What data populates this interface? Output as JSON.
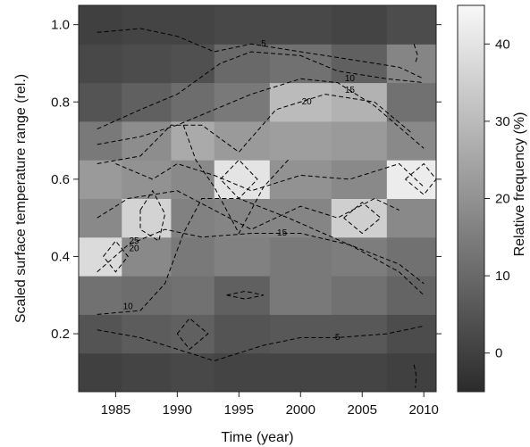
{
  "chart_data": {
    "type": "heatmap",
    "title": "",
    "xlabel": "Time (year)",
    "ylabel": "Scaled surface temperature range (rel.)",
    "colorbar_label": "Relative frequency (%)",
    "xlim": [
      1982,
      2011
    ],
    "ylim": [
      0.05,
      1.05
    ],
    "x_ticks": [
      1985,
      1990,
      1995,
      2000,
      2005,
      2010
    ],
    "y_ticks": [
      0.2,
      0.4,
      0.6,
      0.8,
      1.0
    ],
    "colorbar_ticks": [
      0,
      10,
      20,
      30,
      40
    ],
    "colorbar_range": [
      -5,
      45
    ],
    "colormap": {
      "low": "#2b2b2b",
      "high": "#f8f8f8"
    },
    "grid": false,
    "x_edges": [
      1982,
      1985.5,
      1989.5,
      1993,
      1997.5,
      2002.5,
      2007,
      2011
    ],
    "y_edges": [
      0.05,
      0.15,
      0.25,
      0.35,
      0.45,
      0.55,
      0.65,
      0.75,
      0.85,
      0.95,
      1.05
    ],
    "values": [
      [
        0,
        1,
        2,
        1,
        1,
        1,
        0
      ],
      [
        5,
        7,
        8,
        5,
        6,
        6,
        3
      ],
      [
        12,
        11,
        12,
        8,
        14,
        12,
        9
      ],
      [
        38,
        18,
        14,
        16,
        14,
        15,
        12
      ],
      [
        18,
        36,
        16,
        17,
        17,
        35,
        18
      ],
      [
        22,
        20,
        18,
        40,
        20,
        18,
        42
      ],
      [
        14,
        19,
        26,
        22,
        23,
        22,
        18
      ],
      [
        5,
        8,
        11,
        14,
        30,
        28,
        12
      ],
      [
        2,
        3,
        4,
        10,
        12,
        8,
        17
      ],
      [
        0,
        1,
        1,
        2,
        2,
        1,
        3
      ]
    ],
    "contours": [
      {
        "level": "5",
        "points": [
          [
            1983.5,
            0.98
          ],
          [
            1987,
            0.99
          ],
          [
            1990,
            0.97
          ],
          [
            1993,
            0.93
          ],
          [
            1996,
            0.95
          ],
          [
            2000,
            0.93
          ],
          [
            2004,
            0.91
          ],
          [
            2008,
            0.89
          ],
          [
            2010,
            0.86
          ]
        ]
      },
      {
        "level": "5",
        "points": [
          [
            1983.5,
            0.21
          ],
          [
            1987,
            0.19
          ],
          [
            1990,
            0.16
          ],
          [
            1993,
            0.13
          ],
          [
            1997,
            0.17
          ],
          [
            2000,
            0.19
          ],
          [
            2003,
            0.19
          ],
          [
            2007,
            0.2
          ],
          [
            2010,
            0.22
          ]
        ]
      },
      {
        "level": "10",
        "points": [
          [
            1983.5,
            0.73
          ],
          [
            1987,
            0.78
          ],
          [
            1990,
            0.82
          ],
          [
            1993.5,
            0.9
          ],
          [
            1996,
            0.93
          ],
          [
            2000,
            0.92
          ],
          [
            2003,
            0.88
          ],
          [
            2007,
            0.86
          ],
          [
            2010,
            0.85
          ]
        ]
      },
      {
        "level": "10",
        "points": [
          [
            1983.5,
            0.25
          ],
          [
            1987,
            0.26
          ],
          [
            1989,
            0.33
          ],
          [
            1990.5,
            0.46
          ],
          [
            1992,
            0.55
          ],
          [
            1995,
            0.55
          ],
          [
            1999,
            0.5
          ],
          [
            2004,
            0.43
          ],
          [
            2008,
            0.36
          ],
          [
            2010,
            0.3
          ]
        ]
      },
      {
        "level": "15",
        "points": [
          [
            1983.5,
            0.69
          ],
          [
            1987,
            0.71
          ],
          [
            1990,
            0.74
          ],
          [
            1993,
            0.78
          ],
          [
            1996,
            0.82
          ],
          [
            2000,
            0.86
          ],
          [
            2003,
            0.85
          ],
          [
            2006,
            0.79
          ],
          [
            2010,
            0.68
          ]
        ]
      },
      {
        "level": "15",
        "points": [
          [
            1983.5,
            0.36
          ],
          [
            1986,
            0.43
          ],
          [
            1989,
            0.47
          ],
          [
            1992,
            0.45
          ],
          [
            1996,
            0.46
          ],
          [
            2000,
            0.46
          ],
          [
            2004,
            0.43
          ],
          [
            2008,
            0.38
          ],
          [
            2010,
            0.33
          ]
        ]
      },
      {
        "level": "20",
        "points": [
          [
            1983.5,
            0.64
          ],
          [
            1987,
            0.66
          ],
          [
            1989.5,
            0.74
          ],
          [
            1992,
            0.74
          ],
          [
            1995,
            0.67
          ],
          [
            1998,
            0.78
          ],
          [
            2002,
            0.82
          ],
          [
            2006,
            0.8
          ],
          [
            2009,
            0.72
          ]
        ]
      },
      {
        "level": "20",
        "points": [
          [
            1983.5,
            0.5
          ],
          [
            1986,
            0.55
          ],
          [
            1990,
            0.57
          ],
          [
            1993,
            0.52
          ],
          [
            1996,
            0.47
          ],
          [
            2000,
            0.53
          ],
          [
            2003,
            0.5
          ],
          [
            2006,
            0.55
          ],
          [
            2008,
            0.52
          ]
        ]
      },
      {
        "level": "",
        "points": [
          [
            1985,
            0.64
          ],
          [
            1988,
            0.6
          ],
          [
            1990,
            0.64
          ],
          [
            1993,
            0.61
          ],
          [
            1996,
            0.57
          ],
          [
            2000,
            0.61
          ],
          [
            2004,
            0.6
          ],
          [
            2008,
            0.64
          ],
          [
            2010,
            0.58
          ]
        ]
      },
      {
        "level": "",
        "points": [
          [
            1990.5,
            0.74
          ],
          [
            1991.5,
            0.65
          ],
          [
            1993,
            0.58
          ],
          [
            1994,
            0.52
          ],
          [
            1995,
            0.46
          ],
          [
            1997,
            0.58
          ],
          [
            1999,
            0.65
          ]
        ]
      },
      {
        "level": "",
        "points": [
          [
            1987,
            0.52
          ],
          [
            1988,
            0.57
          ],
          [
            1989,
            0.51
          ],
          [
            1988.5,
            0.44
          ],
          [
            1987,
            0.47
          ],
          [
            1987,
            0.52
          ]
        ]
      },
      {
        "level": "",
        "points": [
          [
            1993.5,
            0.6
          ],
          [
            1995,
            0.65
          ],
          [
            1996.5,
            0.6
          ],
          [
            1995,
            0.55
          ],
          [
            1993.5,
            0.6
          ]
        ]
      },
      {
        "level": "",
        "points": [
          [
            2003.5,
            0.5
          ],
          [
            2005,
            0.54
          ],
          [
            2006.5,
            0.5
          ],
          [
            2005,
            0.46
          ],
          [
            2003.5,
            0.5
          ]
        ]
      },
      {
        "level": "",
        "points": [
          [
            2008.5,
            0.6
          ],
          [
            2010,
            0.64
          ],
          [
            2011,
            0.6
          ],
          [
            2010,
            0.56
          ],
          [
            2008.5,
            0.6
          ]
        ]
      },
      {
        "level": "",
        "points": [
          [
            1984,
            0.4
          ],
          [
            1985,
            0.44
          ],
          [
            1986,
            0.4
          ],
          [
            1985,
            0.36
          ],
          [
            1984,
            0.4
          ]
        ]
      },
      {
        "level": "",
        "points": [
          [
            1990,
            0.2
          ],
          [
            1991,
            0.24
          ],
          [
            1992.5,
            0.2
          ],
          [
            1991,
            0.16
          ],
          [
            1990,
            0.2
          ]
        ]
      },
      {
        "level": "",
        "points": [
          [
            1994,
            0.3
          ],
          [
            1995.5,
            0.31
          ],
          [
            1997,
            0.3
          ],
          [
            1995.5,
            0.29
          ],
          [
            1994,
            0.3
          ]
        ]
      },
      {
        "level": "",
        "points": [
          [
            2009.2,
            0.95
          ],
          [
            2009.5,
            0.92
          ],
          [
            2009.3,
            0.9
          ]
        ]
      },
      {
        "level": "",
        "points": [
          [
            2009.2,
            0.12
          ],
          [
            2009.4,
            0.09
          ],
          [
            2009.3,
            0.06
          ]
        ]
      }
    ],
    "contour_labels": [
      {
        "text": "5",
        "x": 1997,
        "y": 0.95
      },
      {
        "text": "10",
        "x": 2004,
        "y": 0.86
      },
      {
        "text": "15",
        "x": 2004,
        "y": 0.83
      },
      {
        "text": "20",
        "x": 2000.5,
        "y": 0.8
      },
      {
        "text": "15",
        "x": 1998.5,
        "y": 0.46
      },
      {
        "text": "10",
        "x": 1986,
        "y": 0.27
      },
      {
        "text": "5",
        "x": 2003,
        "y": 0.19
      },
      {
        "text": "20",
        "x": 1986.5,
        "y": 0.42
      },
      {
        "text": "25",
        "x": 1986.5,
        "y": 0.44
      }
    ]
  }
}
